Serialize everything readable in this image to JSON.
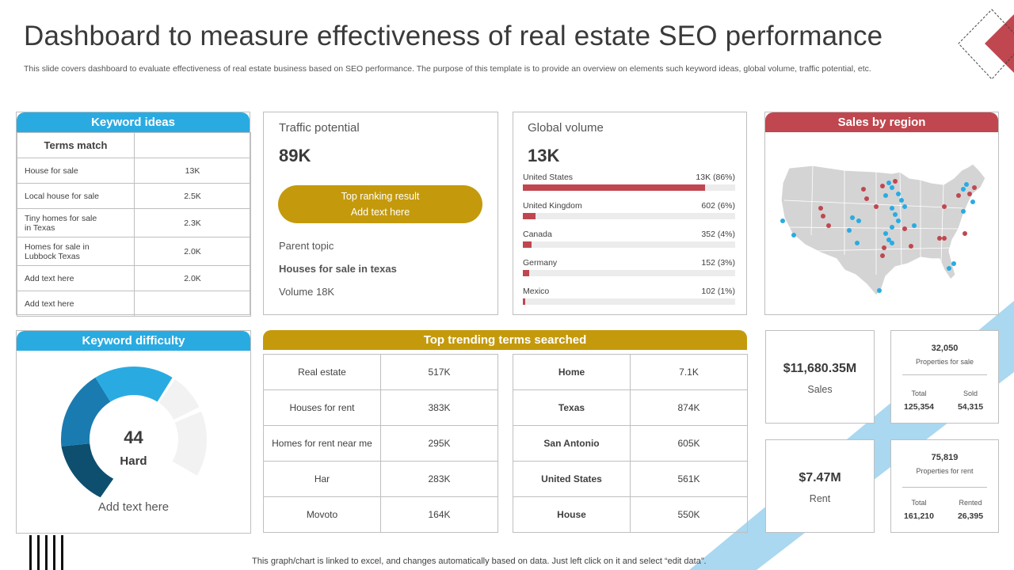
{
  "title": "Dashboard to measure effectiveness of real estate SEO performance",
  "subtitle": "This slide covers dashboard to evaluate effectiveness of real estate business based on SEO performance. The purpose of this template is to provide an overview on elements such keyword ideas, global volume, traffic potential, etc.",
  "colors": {
    "blue": "#29abe2",
    "red": "#c0474f",
    "gold": "#c49a0c"
  },
  "keyword_ideas": {
    "header": "Keyword ideas",
    "column_header": "Terms match",
    "rows": [
      {
        "term": "House for sale",
        "value": "13K"
      },
      {
        "term": "Local house for sale",
        "value": "2.5K"
      },
      {
        "term": "Tiny homes for sale in Texas",
        "value": "2.3K"
      },
      {
        "term": "Homes for sale in Lubbock Texas",
        "value": "2.0K"
      },
      {
        "term": "Add text here",
        "value": "2.0K"
      },
      {
        "term": "Add text here",
        "value": ""
      }
    ]
  },
  "traffic_potential": {
    "label": "Traffic potential",
    "value": "89K",
    "pill_line1": "Top ranking result",
    "pill_line2": "Add text here",
    "parent_topic_label": "Parent topic",
    "parent_topic_value": "Houses for sale in texas",
    "volume": "Volume 18K"
  },
  "global_volume": {
    "label": "Global volume",
    "value": "13K",
    "rows": [
      {
        "country": "United States",
        "value": "13K (86%)",
        "fraction": 0.86
      },
      {
        "country": "United Kingdom",
        "value": "602 (6%)",
        "fraction": 0.06
      },
      {
        "country": "Canada",
        "value": "352 (4%)",
        "fraction": 0.04
      },
      {
        "country": "Germany",
        "value": "152 (3%)",
        "fraction": 0.03
      },
      {
        "country": "Mexico",
        "value": "102 (1%)",
        "fraction": 0.01
      }
    ]
  },
  "sales_by_region": {
    "header": "Sales by region"
  },
  "keyword_difficulty": {
    "header": "Keyword difficulty",
    "value": "44",
    "level": "Hard",
    "caption": "Add text here"
  },
  "trending": {
    "header": "Top trending terms searched",
    "left": [
      {
        "term": "Real estate",
        "value": "517K"
      },
      {
        "term": "Houses for rent",
        "value": "383K"
      },
      {
        "term": "Homes for rent near me",
        "value": "295K"
      },
      {
        "term": "Har",
        "value": "283K"
      },
      {
        "term": "Movoto",
        "value": "164K"
      }
    ],
    "right": [
      {
        "term": "Home",
        "value": "7.1K"
      },
      {
        "term": "Texas",
        "value": "874K"
      },
      {
        "term": "San Antonio",
        "value": "605K"
      },
      {
        "term": "United States",
        "value": "561K"
      },
      {
        "term": "House",
        "value": "550K"
      }
    ]
  },
  "sales": {
    "value": "$11,680.35M",
    "label": "Sales"
  },
  "rent": {
    "value": "$7.47M",
    "label": "Rent"
  },
  "properties_for_sale": {
    "value": "32,050",
    "label": "Properties for sale",
    "col1_label": "Total",
    "col1_value": "125,354",
    "col2_label": "Sold",
    "col2_value": "54,315"
  },
  "properties_for_rent": {
    "value": "75,819",
    "label": "Properties for rent",
    "col1_label": "Total",
    "col1_value": "161,210",
    "col2_label": "Rented",
    "col2_value": "26,395"
  },
  "footer": "This graph/chart is linked to excel,  and changes automatically based on data. Just left click on it and select “edit data”."
}
